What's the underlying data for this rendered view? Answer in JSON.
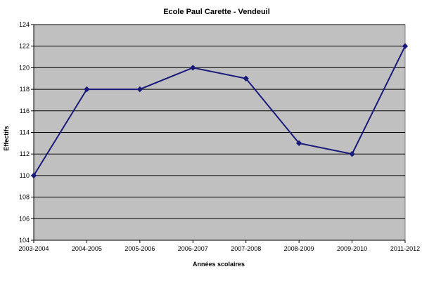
{
  "chart_data": {
    "type": "line",
    "title": "Ecole Paul Carette - Vendeuil",
    "xlabel": "Années scolaires",
    "ylabel": "Effectifs",
    "ylim": [
      104,
      124
    ],
    "y_ticks": [
      104,
      106,
      108,
      110,
      112,
      114,
      116,
      118,
      120,
      122,
      124
    ],
    "categories": [
      "2003-2004",
      "2004-2005",
      "2005-2006",
      "2006-2007",
      "2007-2008",
      "2008-2009",
      "2009-2010",
      "2011-2012"
    ],
    "series": [
      {
        "values": [
          110,
          118,
          118,
          120,
          119,
          113,
          112,
          122
        ]
      }
    ],
    "grid": true,
    "legend": "none",
    "colors": {
      "plot_background": "#c0c0c0",
      "line": "#1a1a7a",
      "gridline": "#000000"
    }
  }
}
